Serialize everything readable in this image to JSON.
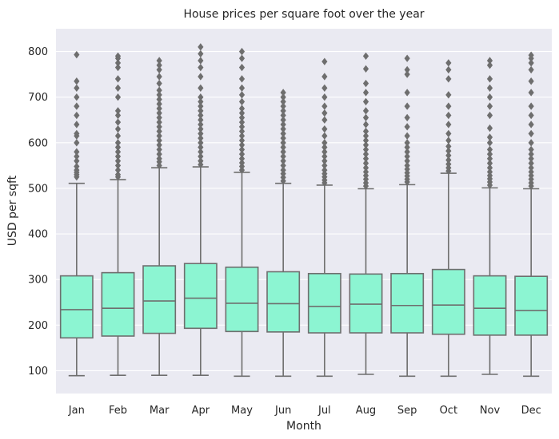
{
  "chart_data": {
    "type": "box",
    "title": "House prices per square foot over the year",
    "xlabel": "Month",
    "ylabel": "USD per sqft",
    "ylim": [
      50,
      850
    ],
    "yticks": [
      100,
      200,
      300,
      400,
      500,
      600,
      700,
      800
    ],
    "grid": true,
    "colors": {
      "box_fill": "#8cf5d2",
      "line": "#6e6e6e",
      "background": "#eaeaf2",
      "grid": "#ffffff"
    },
    "categories": [
      "Jan",
      "Feb",
      "Mar",
      "Apr",
      "May",
      "Jun",
      "Jul",
      "Aug",
      "Sep",
      "Oct",
      "Nov",
      "Dec"
    ],
    "boxes": [
      {
        "label": "Jan",
        "whislo": 89,
        "q1": 172,
        "med": 234,
        "q3": 308,
        "whishi": 511,
        "fliers": [
          525,
          530,
          535,
          540,
          548,
          560,
          570,
          580,
          600,
          615,
          620,
          640,
          660,
          680,
          700,
          720,
          735,
          793
        ]
      },
      {
        "label": "Feb",
        "whislo": 90,
        "q1": 176,
        "med": 237,
        "q3": 315,
        "whishi": 519,
        "fliers": [
          525,
          530,
          540,
          550,
          560,
          570,
          580,
          590,
          600,
          615,
          630,
          645,
          660,
          670,
          700,
          720,
          740,
          765,
          775,
          785,
          790
        ]
      },
      {
        "label": "Mar",
        "whislo": 90,
        "q1": 182,
        "med": 253,
        "q3": 330,
        "whishi": 545,
        "fliers": [
          550,
          558,
          565,
          575,
          585,
          595,
          605,
          615,
          625,
          635,
          645,
          655,
          665,
          675,
          685,
          695,
          705,
          715,
          730,
          745,
          760,
          770,
          780
        ]
      },
      {
        "label": "Apr",
        "whislo": 90,
        "q1": 193,
        "med": 259,
        "q3": 335,
        "whishi": 547,
        "fliers": [
          552,
          560,
          570,
          580,
          590,
          600,
          610,
          620,
          630,
          640,
          650,
          660,
          670,
          680,
          690,
          700,
          720,
          745,
          765,
          780,
          795,
          810
        ]
      },
      {
        "label": "May",
        "whislo": 88,
        "q1": 186,
        "med": 248,
        "q3": 327,
        "whishi": 535,
        "fliers": [
          540,
          548,
          556,
          565,
          575,
          585,
          595,
          605,
          615,
          625,
          635,
          645,
          655,
          665,
          675,
          690,
          705,
          720,
          740,
          765,
          785,
          800
        ]
      },
      {
        "label": "Jun",
        "whislo": 88,
        "q1": 185,
        "med": 247,
        "q3": 317,
        "whishi": 511,
        "fliers": [
          516,
          524,
          532,
          540,
          550,
          560,
          570,
          580,
          590,
          600,
          610,
          620,
          630,
          640,
          650,
          660,
          670,
          680,
          690,
          700,
          710
        ]
      },
      {
        "label": "Jul",
        "whislo": 88,
        "q1": 183,
        "med": 241,
        "q3": 313,
        "whishi": 507,
        "fliers": [
          512,
          518,
          525,
          532,
          540,
          550,
          560,
          570,
          580,
          590,
          600,
          615,
          630,
          650,
          665,
          680,
          700,
          720,
          745,
          778
        ]
      },
      {
        "label": "Aug",
        "whislo": 92,
        "q1": 183,
        "med": 246,
        "q3": 312,
        "whishi": 499,
        "fliers": [
          505,
          512,
          520,
          528,
          536,
          545,
          555,
          565,
          575,
          585,
          595,
          605,
          615,
          625,
          640,
          655,
          670,
          690,
          710,
          730,
          762,
          790
        ]
      },
      {
        "label": "Sep",
        "whislo": 88,
        "q1": 183,
        "med": 243,
        "q3": 313,
        "whishi": 508,
        "fliers": [
          514,
          520,
          527,
          534,
          542,
          550,
          560,
          570,
          580,
          590,
          600,
          615,
          635,
          655,
          680,
          710,
          750,
          760,
          785
        ]
      },
      {
        "label": "Oct",
        "whislo": 88,
        "q1": 180,
        "med": 244,
        "q3": 322,
        "whishi": 533,
        "fliers": [
          538,
          545,
          553,
          562,
          572,
          582,
          592,
          605,
          620,
          640,
          660,
          680,
          705,
          740,
          760,
          775
        ]
      },
      {
        "label": "Nov",
        "whislo": 92,
        "q1": 178,
        "med": 237,
        "q3": 308,
        "whishi": 501,
        "fliers": [
          507,
          514,
          521,
          528,
          536,
          545,
          555,
          565,
          575,
          585,
          600,
          612,
          632,
          660,
          680,
          700,
          720,
          740,
          770,
          780
        ]
      },
      {
        "label": "Dec",
        "whislo": 88,
        "q1": 178,
        "med": 232,
        "q3": 307,
        "whishi": 499,
        "fliers": [
          505,
          512,
          520,
          528,
          536,
          545,
          555,
          565,
          575,
          585,
          600,
          620,
          640,
          660,
          680,
          710,
          735,
          760,
          775,
          785,
          792
        ]
      }
    ]
  }
}
